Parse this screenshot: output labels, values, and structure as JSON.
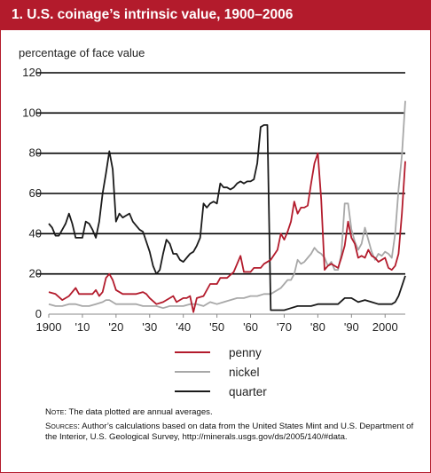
{
  "title": "1. U.S. coinage’s intrinsic value, 1900–2006",
  "colors": {
    "brand": "#b31b2c",
    "penny": "#b31b2c",
    "nickel": "#a8a8a8",
    "quarter": "#1a1a1a"
  },
  "chart_data": {
    "type": "line",
    "title": "1. U.S. coinage’s intrinsic value, 1900–2006",
    "ylabel": "percentage of face value",
    "xlabel": "",
    "xlim": [
      1900,
      2006
    ],
    "ylim": [
      0,
      120
    ],
    "yticks": [
      0,
      20,
      40,
      60,
      80,
      100,
      120
    ],
    "xticks": [
      {
        "value": 1900,
        "label": "1900"
      },
      {
        "value": 1910,
        "label": "'10"
      },
      {
        "value": 1920,
        "label": "'20"
      },
      {
        "value": 1930,
        "label": "'30"
      },
      {
        "value": 1940,
        "label": "'40"
      },
      {
        "value": 1950,
        "label": "'50"
      },
      {
        "value": 1960,
        "label": "'60"
      },
      {
        "value": 1970,
        "label": "'70"
      },
      {
        "value": 1980,
        "label": "'80"
      },
      {
        "value": 1990,
        "label": "'90"
      },
      {
        "value": 2000,
        "label": "2000"
      }
    ],
    "grid": "horizontal",
    "legend_position": "bottom",
    "series": [
      {
        "name": "penny",
        "points": [
          [
            1900,
            11
          ],
          [
            1902,
            10
          ],
          [
            1904,
            7
          ],
          [
            1906,
            9
          ],
          [
            1908,
            13
          ],
          [
            1909,
            10
          ],
          [
            1911,
            10
          ],
          [
            1913,
            10
          ],
          [
            1914,
            12
          ],
          [
            1915,
            9
          ],
          [
            1916,
            11
          ],
          [
            1917,
            18
          ],
          [
            1918,
            20
          ],
          [
            1919,
            17
          ],
          [
            1920,
            12
          ],
          [
            1922,
            10
          ],
          [
            1924,
            10
          ],
          [
            1926,
            10
          ],
          [
            1928,
            11
          ],
          [
            1929,
            10
          ],
          [
            1930,
            8
          ],
          [
            1932,
            5
          ],
          [
            1934,
            6
          ],
          [
            1936,
            8
          ],
          [
            1937,
            9
          ],
          [
            1938,
            6
          ],
          [
            1940,
            8
          ],
          [
            1941,
            8
          ],
          [
            1942,
            9
          ],
          [
            1943,
            1
          ],
          [
            1944,
            8
          ],
          [
            1946,
            9
          ],
          [
            1948,
            15
          ],
          [
            1950,
            15
          ],
          [
            1951,
            18
          ],
          [
            1953,
            18
          ],
          [
            1955,
            21
          ],
          [
            1957,
            29
          ],
          [
            1958,
            21
          ],
          [
            1960,
            21
          ],
          [
            1961,
            23
          ],
          [
            1963,
            23
          ],
          [
            1964,
            25
          ],
          [
            1966,
            27
          ],
          [
            1968,
            32
          ],
          [
            1969,
            40
          ],
          [
            1970,
            37
          ],
          [
            1971,
            41
          ],
          [
            1972,
            46
          ],
          [
            1973,
            56
          ],
          [
            1974,
            50
          ],
          [
            1975,
            53
          ],
          [
            1976,
            53
          ],
          [
            1977,
            54
          ],
          [
            1978,
            65
          ],
          [
            1979,
            75
          ],
          [
            1980,
            80
          ],
          [
            1981,
            57
          ],
          [
            1982,
            22
          ],
          [
            1983,
            24
          ],
          [
            1984,
            25
          ],
          [
            1985,
            24
          ],
          [
            1986,
            23
          ],
          [
            1987,
            28
          ],
          [
            1988,
            34
          ],
          [
            1989,
            46
          ],
          [
            1990,
            38
          ],
          [
            1991,
            35
          ],
          [
            1992,
            28
          ],
          [
            1993,
            29
          ],
          [
            1994,
            28
          ],
          [
            1995,
            32
          ],
          [
            1996,
            29
          ],
          [
            1997,
            28
          ],
          [
            1998,
            26
          ],
          [
            1999,
            27
          ],
          [
            2000,
            28
          ],
          [
            2001,
            23
          ],
          [
            2002,
            22
          ],
          [
            2003,
            24
          ],
          [
            2004,
            30
          ],
          [
            2005,
            50
          ],
          [
            2006,
            76
          ]
        ]
      },
      {
        "name": "nickel",
        "points": [
          [
            1900,
            5
          ],
          [
            1902,
            4
          ],
          [
            1904,
            4
          ],
          [
            1906,
            5
          ],
          [
            1908,
            5
          ],
          [
            1910,
            4
          ],
          [
            1912,
            4
          ],
          [
            1914,
            5
          ],
          [
            1916,
            6
          ],
          [
            1917,
            7
          ],
          [
            1918,
            7
          ],
          [
            1920,
            5
          ],
          [
            1922,
            5
          ],
          [
            1924,
            5
          ],
          [
            1926,
            5
          ],
          [
            1928,
            4
          ],
          [
            1930,
            4
          ],
          [
            1932,
            4
          ],
          [
            1934,
            3
          ],
          [
            1936,
            4
          ],
          [
            1938,
            4
          ],
          [
            1940,
            4
          ],
          [
            1942,
            5
          ],
          [
            1944,
            5
          ],
          [
            1946,
            4
          ],
          [
            1948,
            6
          ],
          [
            1950,
            5
          ],
          [
            1952,
            6
          ],
          [
            1954,
            7
          ],
          [
            1956,
            8
          ],
          [
            1958,
            8
          ],
          [
            1960,
            9
          ],
          [
            1962,
            9
          ],
          [
            1964,
            10
          ],
          [
            1966,
            10
          ],
          [
            1968,
            12
          ],
          [
            1969,
            13
          ],
          [
            1970,
            15
          ],
          [
            1971,
            17
          ],
          [
            1972,
            17
          ],
          [
            1973,
            20
          ],
          [
            1974,
            27
          ],
          [
            1975,
            25
          ],
          [
            1976,
            26
          ],
          [
            1977,
            28
          ],
          [
            1978,
            30
          ],
          [
            1979,
            33
          ],
          [
            1980,
            31
          ],
          [
            1981,
            30
          ],
          [
            1982,
            28
          ],
          [
            1983,
            24
          ],
          [
            1984,
            26
          ],
          [
            1985,
            22
          ],
          [
            1986,
            22
          ],
          [
            1987,
            30
          ],
          [
            1988,
            55
          ],
          [
            1989,
            55
          ],
          [
            1990,
            42
          ],
          [
            1991,
            36
          ],
          [
            1992,
            32
          ],
          [
            1993,
            35
          ],
          [
            1994,
            43
          ],
          [
            1995,
            37
          ],
          [
            1996,
            31
          ],
          [
            1997,
            27
          ],
          [
            1998,
            30
          ],
          [
            1999,
            29
          ],
          [
            2000,
            31
          ],
          [
            2001,
            30
          ],
          [
            2002,
            28
          ],
          [
            2003,
            40
          ],
          [
            2004,
            62
          ],
          [
            2005,
            79
          ],
          [
            2006,
            106
          ]
        ]
      },
      {
        "name": "quarter",
        "points": [
          [
            1900,
            45
          ],
          [
            1901,
            43
          ],
          [
            1902,
            39
          ],
          [
            1903,
            39
          ],
          [
            1904,
            42
          ],
          [
            1905,
            45
          ],
          [
            1906,
            50
          ],
          [
            1907,
            45
          ],
          [
            1908,
            38
          ],
          [
            1909,
            38
          ],
          [
            1910,
            38
          ],
          [
            1911,
            46
          ],
          [
            1912,
            45
          ],
          [
            1913,
            42
          ],
          [
            1914,
            38
          ],
          [
            1915,
            46
          ],
          [
            1916,
            60
          ],
          [
            1917,
            70
          ],
          [
            1918,
            81
          ],
          [
            1919,
            72
          ],
          [
            1920,
            46
          ],
          [
            1921,
            50
          ],
          [
            1922,
            48
          ],
          [
            1923,
            49
          ],
          [
            1924,
            50
          ],
          [
            1925,
            46
          ],
          [
            1926,
            44
          ],
          [
            1927,
            42
          ],
          [
            1928,
            41
          ],
          [
            1929,
            36
          ],
          [
            1930,
            31
          ],
          [
            1931,
            24
          ],
          [
            1932,
            20
          ],
          [
            1933,
            22
          ],
          [
            1934,
            30
          ],
          [
            1935,
            37
          ],
          [
            1936,
            35
          ],
          [
            1937,
            30
          ],
          [
            1938,
            30
          ],
          [
            1939,
            27
          ],
          [
            1940,
            26
          ],
          [
            1941,
            28
          ],
          [
            1942,
            30
          ],
          [
            1943,
            31
          ],
          [
            1944,
            34
          ],
          [
            1945,
            38
          ],
          [
            1946,
            55
          ],
          [
            1947,
            53
          ],
          [
            1948,
            55
          ],
          [
            1949,
            56
          ],
          [
            1950,
            55
          ],
          [
            1951,
            65
          ],
          [
            1952,
            63
          ],
          [
            1953,
            63
          ],
          [
            1954,
            62
          ],
          [
            1955,
            63
          ],
          [
            1956,
            65
          ],
          [
            1957,
            66
          ],
          [
            1958,
            65
          ],
          [
            1959,
            66
          ],
          [
            1960,
            66
          ],
          [
            1961,
            67
          ],
          [
            1962,
            75
          ],
          [
            1963,
            93
          ],
          [
            1964,
            94
          ],
          [
            1965,
            94
          ],
          [
            1966,
            2
          ],
          [
            1968,
            2
          ],
          [
            1970,
            2
          ],
          [
            1972,
            3
          ],
          [
            1974,
            4
          ],
          [
            1976,
            4
          ],
          [
            1978,
            4
          ],
          [
            1980,
            5
          ],
          [
            1982,
            5
          ],
          [
            1984,
            5
          ],
          [
            1986,
            5
          ],
          [
            1988,
            8
          ],
          [
            1990,
            8
          ],
          [
            1992,
            6
          ],
          [
            1994,
            7
          ],
          [
            1996,
            6
          ],
          [
            1998,
            5
          ],
          [
            2000,
            5
          ],
          [
            2002,
            5
          ],
          [
            2003,
            6
          ],
          [
            2004,
            9
          ],
          [
            2005,
            14
          ],
          [
            2006,
            19
          ]
        ]
      }
    ]
  },
  "notes": {
    "note_label": "Note",
    "note_text": ": The data plotted are annual averages.",
    "sources_label": "Sources",
    "sources_text": ": Author’s calculations based on data from the United States Mint and U.S. Department of the Interior, U.S. Geological Survey, http://minerals.usgs.gov/ds/2005/140/#data."
  }
}
